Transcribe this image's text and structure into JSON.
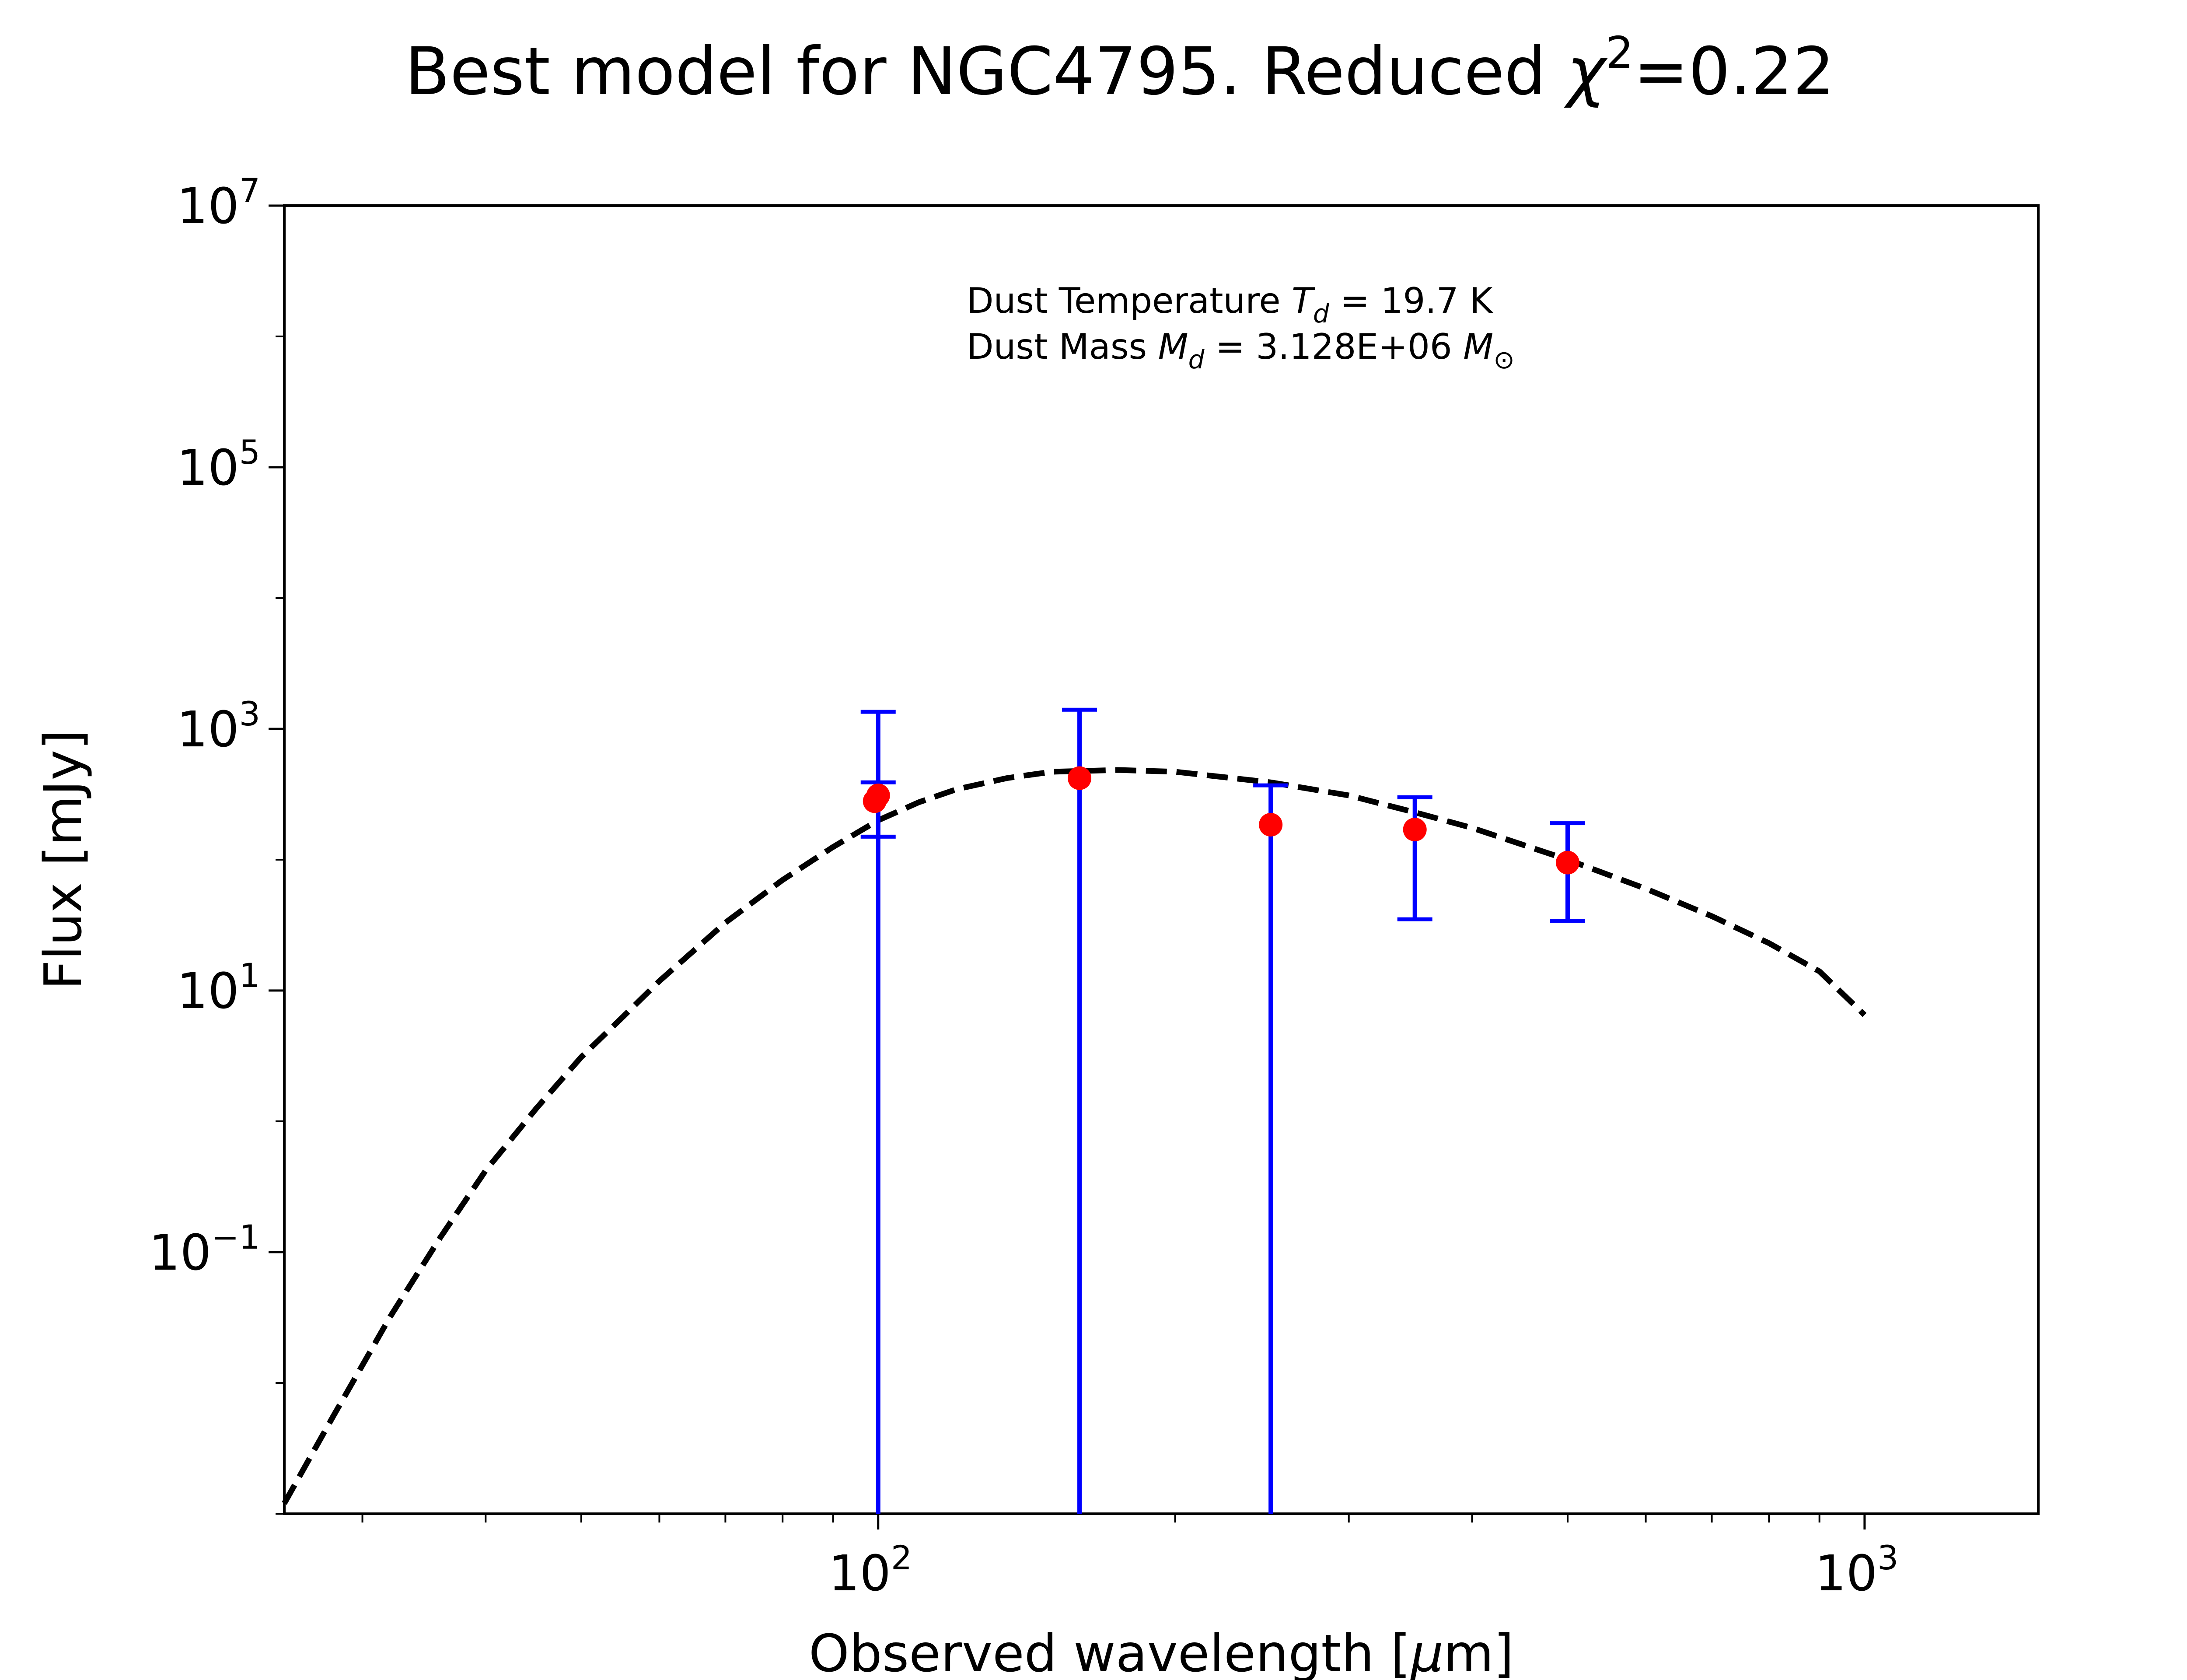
{
  "chart_data": {
    "type": "scatter",
    "title": {
      "prefix": "Best model for NGC4795. Reduced ",
      "chi_symbol": "χ",
      "chi_exponent": "2",
      "suffix": "=0.22"
    },
    "xlabel": {
      "prefix": "Observed wavelength [",
      "mu": "μ",
      "suffix": "m]"
    },
    "ylabel": "Flux [mJy]",
    "x_scale": "log",
    "y_scale": "log",
    "xlim": [
      25,
      1500
    ],
    "ylim": [
      0.001,
      10000000
    ],
    "x_ticks": [
      {
        "value": 100,
        "base": "10",
        "exp": "2"
      },
      {
        "value": 1000,
        "base": "10",
        "exp": "3"
      }
    ],
    "y_ticks": [
      {
        "value": 0.1,
        "base": "10",
        "exp": "−1"
      },
      {
        "value": 10,
        "base": "10",
        "exp": "1"
      },
      {
        "value": 1000,
        "base": "10",
        "exp": "3"
      },
      {
        "value": 100000,
        "base": "10",
        "exp": "5"
      },
      {
        "value": 10000000,
        "base": "10",
        "exp": "7"
      }
    ],
    "grid": false,
    "annotations": {
      "temperature": {
        "prefix": "Dust Temperature ",
        "symbol": "T",
        "sub": "d",
        "value": " = 19.7 K"
      },
      "mass": {
        "prefix": "Dust Mass ",
        "symbol": "M",
        "sub": "d",
        "value": " = 3.128E+06 ",
        "unit": "M",
        "unit_sub": "⊙"
      }
    },
    "points": {
      "color": "#ff0000",
      "x": [
        100,
        100,
        160,
        250,
        350,
        500
      ],
      "y": [
        280,
        310,
        420,
        185,
        170,
        95
      ]
    },
    "error_bars": {
      "color": "#0000ff",
      "bars": [
        {
          "x": 100,
          "low": 150,
          "high": 390
        },
        {
          "x": 100,
          "low": 0.001,
          "high": 1350
        },
        {
          "x": 160,
          "low": 0.001,
          "high": 1400
        },
        {
          "x": 250,
          "low": 0.001,
          "high": 370
        },
        {
          "x": 350,
          "low": 35,
          "high": 300
        },
        {
          "x": 500,
          "low": 34,
          "high": 190
        }
      ]
    },
    "model_curve": {
      "color": "#000000",
      "style": "dashed",
      "x": [
        25,
        28,
        32,
        36,
        40,
        45,
        50,
        55,
        60,
        70,
        80,
        90,
        100,
        110,
        120,
        135,
        150,
        175,
        200,
        250,
        300,
        350,
        400,
        500,
        600,
        700,
        800,
        900,
        1000
      ],
      "y": [
        0.0012,
        0.0055,
        0.032,
        0.13,
        0.42,
        1.25,
        3.1,
        6.2,
        11.8,
        33,
        70,
        125,
        200,
        275,
        345,
        420,
        470,
        485,
        470,
        390,
        310,
        230,
        175,
        100,
        60,
        37,
        23,
        14,
        6.5
      ]
    }
  }
}
